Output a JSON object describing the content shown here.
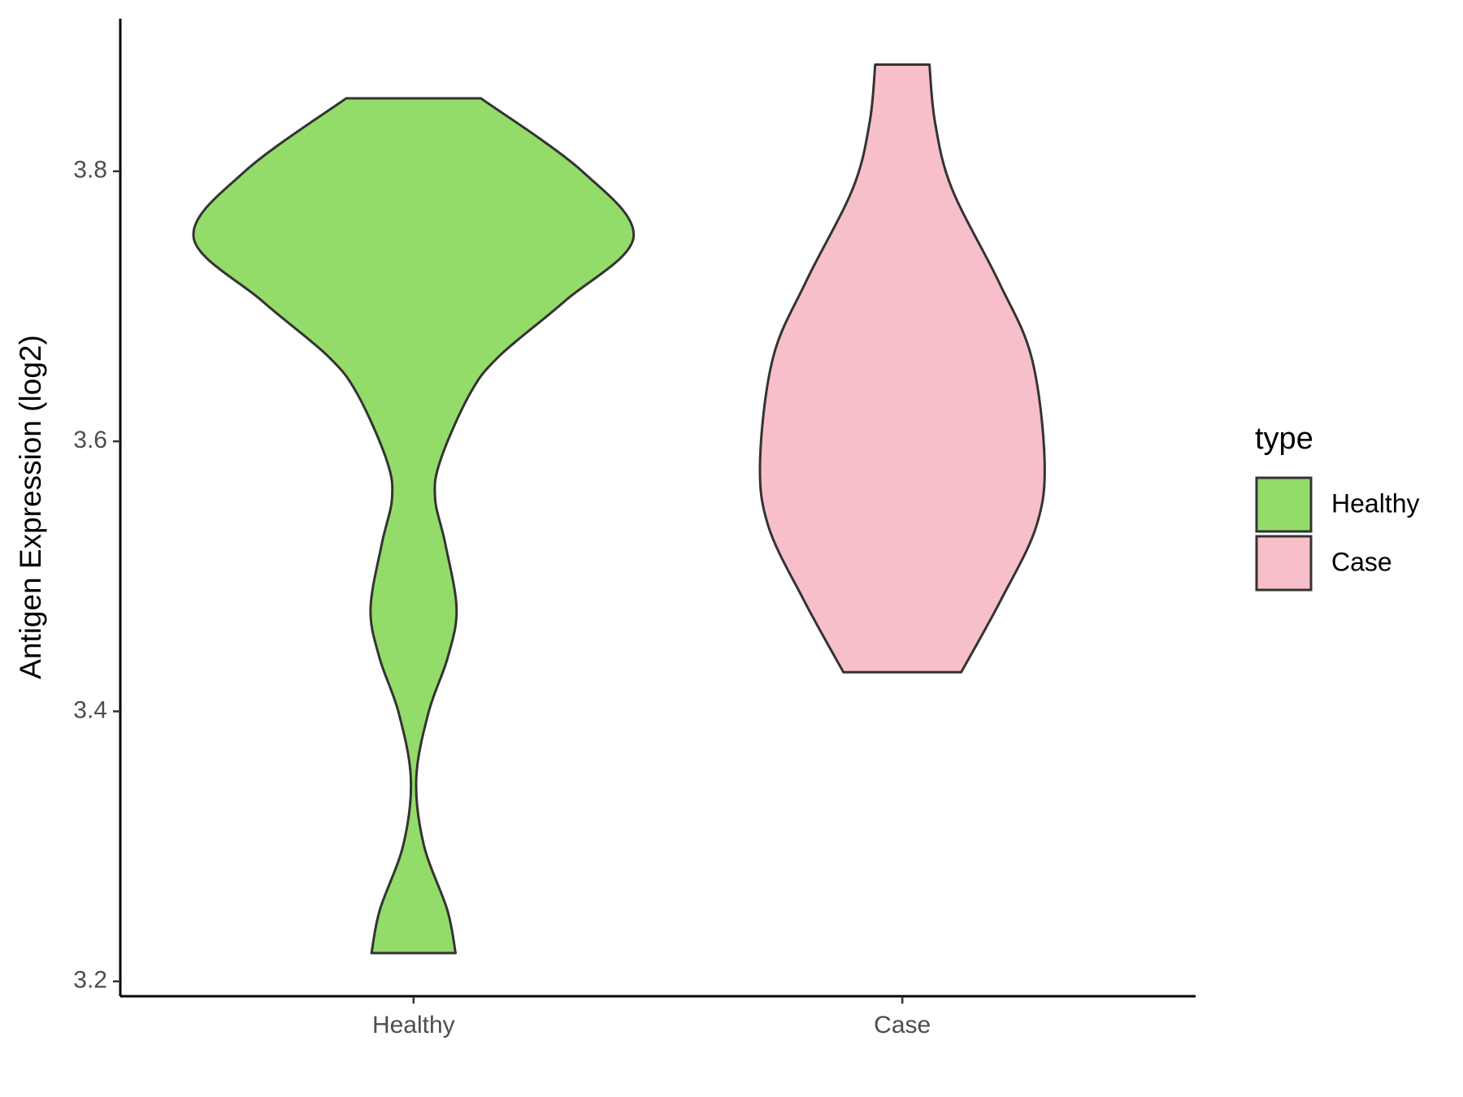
{
  "chart_data": {
    "type": "violin",
    "y_label": "Antigen Expression (log2)",
    "ylim": [
      3.189,
      3.913
    ],
    "yticks": [
      3.2,
      3.4,
      3.6,
      3.8
    ],
    "categories": [
      "Healthy",
      "Case"
    ],
    "legend_title": "type",
    "legend_position": "right",
    "outline_color": "#333333",
    "series": [
      {
        "name": "Healthy",
        "color": "#93dc6a",
        "y": [
          3.854,
          3.8,
          3.751,
          3.704,
          3.663,
          3.635,
          3.586,
          3.558,
          3.524,
          3.476,
          3.44,
          3.399,
          3.35,
          3.301,
          3.253,
          3.221
        ],
        "widths": [
          0.276,
          0.69,
          0.9,
          0.62,
          0.35,
          0.23,
          0.11,
          0.088,
          0.13,
          0.176,
          0.14,
          0.061,
          0.011,
          0.042,
          0.138,
          0.172
        ]
      },
      {
        "name": "Case",
        "color": "#f7bfca",
        "y": [
          3.879,
          3.836,
          3.787,
          3.718,
          3.662,
          3.586,
          3.537,
          3.482,
          3.429
        ],
        "widths": [
          0.111,
          0.134,
          0.203,
          0.395,
          0.529,
          0.582,
          0.548,
          0.402,
          0.241
        ]
      }
    ]
  }
}
